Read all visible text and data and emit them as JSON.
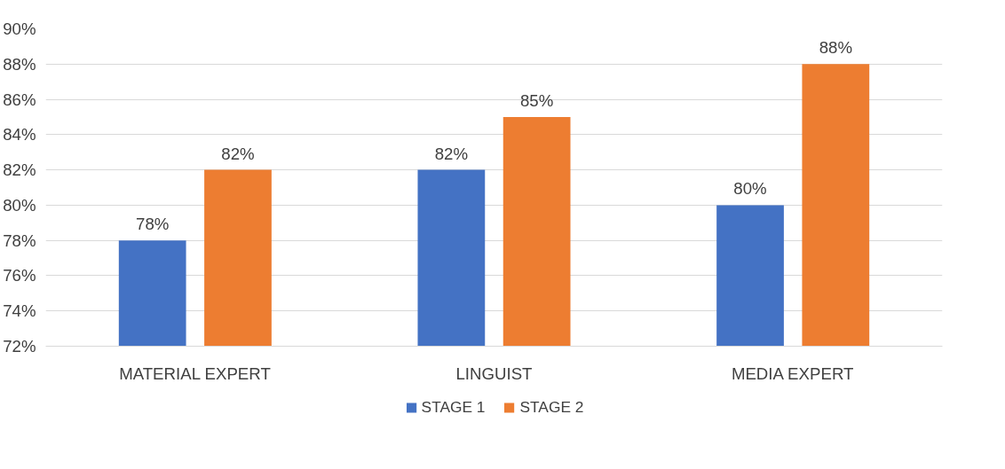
{
  "chart_data": {
    "type": "bar",
    "categories": [
      "MATERIAL EXPERT",
      "LINGUIST",
      "MEDIA EXPERT"
    ],
    "series": [
      {
        "name": "STAGE 1",
        "color": "#4472c4",
        "values": [
          78,
          82,
          80
        ],
        "value_labels": [
          "78%",
          "82%",
          "80%"
        ]
      },
      {
        "name": "STAGE 2",
        "color": "#ed7d31",
        "values": [
          82,
          85,
          88
        ],
        "value_labels": [
          "82%",
          "85%",
          "88%"
        ]
      }
    ],
    "ylim": [
      72,
      90
    ],
    "yticks": [
      {
        "value": 72,
        "label": "72%"
      },
      {
        "value": 74,
        "label": "74%"
      },
      {
        "value": 76,
        "label": "76%"
      },
      {
        "value": 78,
        "label": "78%"
      },
      {
        "value": 80,
        "label": "80%"
      },
      {
        "value": 82,
        "label": "82%"
      },
      {
        "value": 84,
        "label": "84%"
      },
      {
        "value": 86,
        "label": "86%"
      },
      {
        "value": 88,
        "label": "88%"
      },
      {
        "value": 90,
        "label": "90%"
      }
    ],
    "grid": "y",
    "legend": "bottom"
  }
}
